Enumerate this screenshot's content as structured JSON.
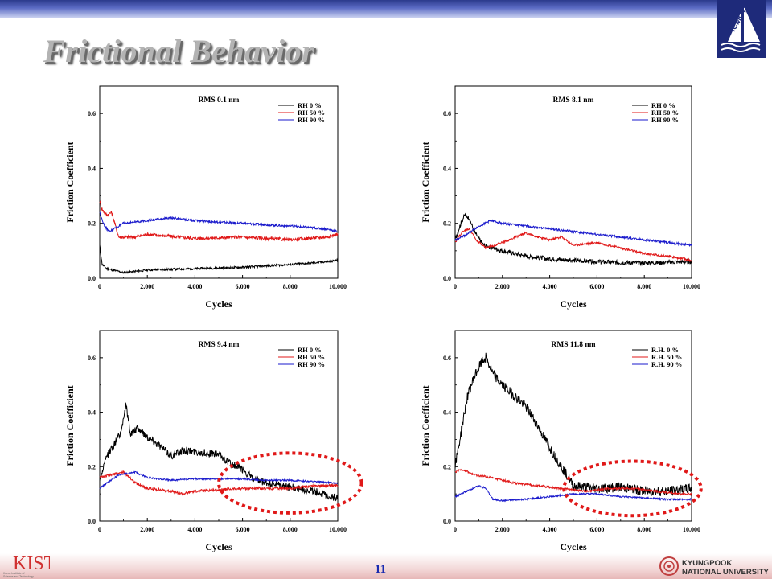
{
  "slide": {
    "title": "Frictional Behavior",
    "page_number": "11",
    "footer_left_logo": "KIST",
    "footer_left_sub1": "Korea Institute of",
    "footer_left_sub2": "Science and Technology",
    "footer_right_line1": "KYUNGPOOK",
    "footer_right_line2": "NATIONAL UNIVERSITY",
    "corner_logo": "ICMCTF"
  },
  "colors": {
    "black": "#000000",
    "red": "#e01818",
    "blue": "#1a1acc",
    "highlight": "#e01818"
  },
  "chart_data": [
    {
      "type": "line",
      "title": "RMS 0.1 nm",
      "xlabel": "Cycles",
      "ylabel": "Friction Coefficient",
      "xlim": [
        0,
        10000
      ],
      "ylim": [
        0,
        0.7
      ],
      "xticks": [
        "0",
        "2,000",
        "4,000",
        "6,000",
        "8,000",
        "10,000"
      ],
      "yticks": [
        "0.0",
        "0.2",
        "0.4",
        "0.6"
      ],
      "legend_position": "top-right",
      "highlight": null,
      "series": [
        {
          "name": "RH 0 %",
          "color": "#000000",
          "noise": 0.004,
          "points": [
            [
              0,
              0.12
            ],
            [
              100,
              0.05
            ],
            [
              300,
              0.035
            ],
            [
              1000,
              0.02
            ],
            [
              2000,
              0.03
            ],
            [
              4000,
              0.035
            ],
            [
              6000,
              0.04
            ],
            [
              8000,
              0.05
            ],
            [
              9500,
              0.06
            ],
            [
              10000,
              0.065
            ]
          ]
        },
        {
          "name": "RH 50 %",
          "color": "#e01818",
          "noise": 0.006,
          "points": [
            [
              0,
              0.28
            ],
            [
              100,
              0.25
            ],
            [
              300,
              0.23
            ],
            [
              500,
              0.24
            ],
            [
              800,
              0.15
            ],
            [
              1500,
              0.15
            ],
            [
              2000,
              0.16
            ],
            [
              4000,
              0.145
            ],
            [
              6000,
              0.15
            ],
            [
              8000,
              0.14
            ],
            [
              9500,
              0.15
            ],
            [
              10000,
              0.16
            ]
          ]
        },
        {
          "name": "RH 90 %",
          "color": "#1a1acc",
          "noise": 0.004,
          "points": [
            [
              0,
              0.24
            ],
            [
              200,
              0.19
            ],
            [
              400,
              0.17
            ],
            [
              600,
              0.18
            ],
            [
              1000,
              0.2
            ],
            [
              2000,
              0.21
            ],
            [
              3000,
              0.22
            ],
            [
              4000,
              0.21
            ],
            [
              6000,
              0.2
            ],
            [
              8000,
              0.19
            ],
            [
              9500,
              0.18
            ],
            [
              10000,
              0.17
            ]
          ]
        }
      ]
    },
    {
      "type": "line",
      "title": "RMS 8.1 nm",
      "xlabel": "Cycles",
      "ylabel": "Friction Coefficient",
      "xlim": [
        0,
        10000
      ],
      "ylim": [
        0,
        0.7
      ],
      "xticks": [
        "0",
        "2,000",
        "4,000",
        "6,000",
        "8,000",
        "10,000"
      ],
      "yticks": [
        "0.0",
        "0.2",
        "0.4",
        "0.6"
      ],
      "legend_position": "top-right",
      "highlight": null,
      "series": [
        {
          "name": "RH 0 %",
          "color": "#000000",
          "noise": 0.008,
          "points": [
            [
              0,
              0.14
            ],
            [
              200,
              0.19
            ],
            [
              400,
              0.23
            ],
            [
              600,
              0.22
            ],
            [
              800,
              0.17
            ],
            [
              1200,
              0.12
            ],
            [
              2000,
              0.1
            ],
            [
              3000,
              0.08
            ],
            [
              4000,
              0.07
            ],
            [
              6000,
              0.06
            ],
            [
              8000,
              0.055
            ],
            [
              9500,
              0.06
            ],
            [
              10000,
              0.06
            ]
          ]
        },
        {
          "name": "RH 50 %",
          "color": "#e01818",
          "noise": 0.004,
          "points": [
            [
              0,
              0.13
            ],
            [
              300,
              0.17
            ],
            [
              600,
              0.18
            ],
            [
              900,
              0.14
            ],
            [
              1300,
              0.11
            ],
            [
              2000,
              0.13
            ],
            [
              3000,
              0.165
            ],
            [
              3500,
              0.15
            ],
            [
              4000,
              0.14
            ],
            [
              4500,
              0.15
            ],
            [
              5000,
              0.12
            ],
            [
              6000,
              0.13
            ],
            [
              7000,
              0.11
            ],
            [
              8000,
              0.09
            ],
            [
              9000,
              0.08
            ],
            [
              10000,
              0.065
            ]
          ]
        },
        {
          "name": "RH 90 %",
          "color": "#1a1acc",
          "noise": 0.004,
          "points": [
            [
              0,
              0.14
            ],
            [
              500,
              0.16
            ],
            [
              1000,
              0.19
            ],
            [
              1500,
              0.21
            ],
            [
              2000,
              0.2
            ],
            [
              3000,
              0.19
            ],
            [
              4000,
              0.18
            ],
            [
              6000,
              0.16
            ],
            [
              8000,
              0.14
            ],
            [
              9500,
              0.125
            ],
            [
              10000,
              0.12
            ]
          ]
        }
      ]
    },
    {
      "type": "line",
      "title": "RMS 9.4 nm",
      "xlabel": "Cycles",
      "ylabel": "Friction Coefficient",
      "xlim": [
        0,
        10000
      ],
      "ylim": [
        0,
        0.7
      ],
      "xticks": [
        "0",
        "2,000",
        "4,000",
        "6,000",
        "8,000",
        "10,000"
      ],
      "yticks": [
        "0.0",
        "0.2",
        "0.4",
        "0.6"
      ],
      "legend_position": "top-right",
      "highlight": {
        "cx": 8000,
        "cy": 0.14,
        "rx": 3000,
        "ry": 0.11
      },
      "series": [
        {
          "name": "RH 0 %",
          "color": "#000000",
          "noise": 0.014,
          "points": [
            [
              0,
              0.15
            ],
            [
              300,
              0.24
            ],
            [
              600,
              0.28
            ],
            [
              900,
              0.33
            ],
            [
              1100,
              0.43
            ],
            [
              1300,
              0.32
            ],
            [
              1600,
              0.34
            ],
            [
              2000,
              0.31
            ],
            [
              2500,
              0.28
            ],
            [
              3000,
              0.24
            ],
            [
              3500,
              0.26
            ],
            [
              4000,
              0.255
            ],
            [
              5000,
              0.245
            ],
            [
              5500,
              0.21
            ],
            [
              6000,
              0.19
            ],
            [
              6500,
              0.15
            ],
            [
              7000,
              0.14
            ],
            [
              8000,
              0.125
            ],
            [
              9000,
              0.11
            ],
            [
              9700,
              0.09
            ],
            [
              10000,
              0.085
            ]
          ]
        },
        {
          "name": "RH 50 %",
          "color": "#e01818",
          "noise": 0.005,
          "points": [
            [
              0,
              0.16
            ],
            [
              500,
              0.17
            ],
            [
              1000,
              0.18
            ],
            [
              1500,
              0.14
            ],
            [
              2000,
              0.12
            ],
            [
              3000,
              0.11
            ],
            [
              3500,
              0.1
            ],
            [
              4000,
              0.11
            ],
            [
              6000,
              0.12
            ],
            [
              7000,
              0.12
            ],
            [
              8000,
              0.12
            ],
            [
              9000,
              0.13
            ],
            [
              10000,
              0.13
            ]
          ]
        },
        {
          "name": "RH 90 %",
          "color": "#1a1acc",
          "noise": 0.003,
          "points": [
            [
              0,
              0.12
            ],
            [
              300,
              0.14
            ],
            [
              800,
              0.17
            ],
            [
              1500,
              0.18
            ],
            [
              2000,
              0.16
            ],
            [
              3000,
              0.15
            ],
            [
              4000,
              0.155
            ],
            [
              5000,
              0.155
            ],
            [
              6000,
              0.155
            ],
            [
              7000,
              0.15
            ],
            [
              8000,
              0.15
            ],
            [
              9000,
              0.145
            ],
            [
              10000,
              0.14
            ]
          ]
        }
      ]
    },
    {
      "type": "line",
      "title": "RMS 11.8 nm",
      "xlabel": "Cycles",
      "ylabel": "Friction Coefficient",
      "xlim": [
        0,
        10000
      ],
      "ylim": [
        0,
        0.7
      ],
      "xticks": [
        "0",
        "2,000",
        "4,000",
        "6,000",
        "8,000",
        "10,000"
      ],
      "yticks": [
        "0.0",
        "0.2",
        "0.4",
        "0.6"
      ],
      "legend_position": "top-right",
      "highlight": {
        "cx": 7500,
        "cy": 0.12,
        "rx": 2900,
        "ry": 0.1
      },
      "series": [
        {
          "name": "R.H. 0 %",
          "color": "#000000",
          "noise": 0.018,
          "points": [
            [
              0,
              0.2
            ],
            [
              200,
              0.3
            ],
            [
              500,
              0.45
            ],
            [
              800,
              0.53
            ],
            [
              1100,
              0.58
            ],
            [
              1300,
              0.6
            ],
            [
              1600,
              0.54
            ],
            [
              2000,
              0.5
            ],
            [
              2500,
              0.46
            ],
            [
              3000,
              0.42
            ],
            [
              3500,
              0.35
            ],
            [
              4000,
              0.27
            ],
            [
              4500,
              0.2
            ],
            [
              5000,
              0.13
            ],
            [
              6000,
              0.12
            ],
            [
              7000,
              0.125
            ],
            [
              8000,
              0.11
            ],
            [
              9000,
              0.11
            ],
            [
              10000,
              0.12
            ]
          ]
        },
        {
          "name": "R.H. 50 %",
          "color": "#e01818",
          "noise": 0.004,
          "points": [
            [
              0,
              0.18
            ],
            [
              300,
              0.19
            ],
            [
              800,
              0.17
            ],
            [
              1500,
              0.16
            ],
            [
              2500,
              0.14
            ],
            [
              3500,
              0.13
            ],
            [
              4500,
              0.12
            ],
            [
              5500,
              0.11
            ],
            [
              6500,
              0.12
            ],
            [
              7500,
              0.12
            ],
            [
              8500,
              0.11
            ],
            [
              9500,
              0.1
            ],
            [
              10000,
              0.1
            ]
          ]
        },
        {
          "name": "R.H. 90 %",
          "color": "#1a1acc",
          "noise": 0.003,
          "points": [
            [
              0,
              0.09
            ],
            [
              500,
              0.11
            ],
            [
              1000,
              0.13
            ],
            [
              1300,
              0.12
            ],
            [
              1600,
              0.08
            ],
            [
              2000,
              0.075
            ],
            [
              3000,
              0.08
            ],
            [
              4000,
              0.09
            ],
            [
              5000,
              0.1
            ],
            [
              6000,
              0.1
            ],
            [
              7000,
              0.09
            ],
            [
              8000,
              0.085
            ],
            [
              9000,
              0.08
            ],
            [
              10000,
              0.08
            ]
          ]
        }
      ]
    }
  ]
}
